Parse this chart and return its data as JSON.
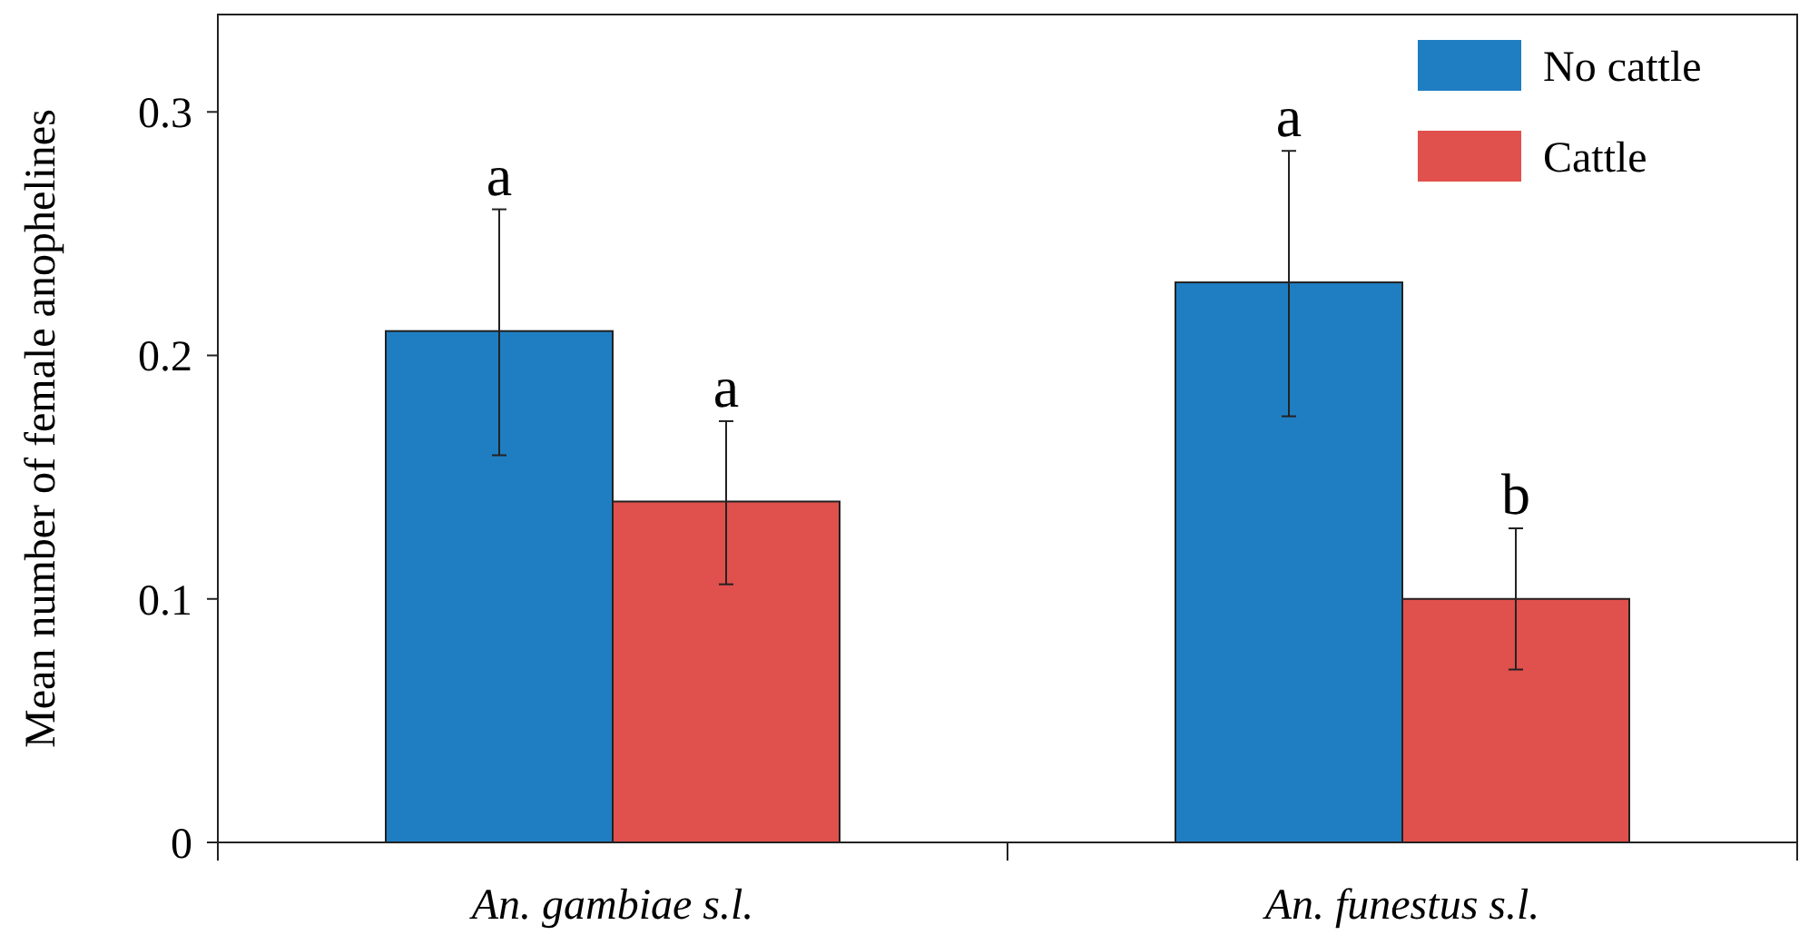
{
  "chart_data": {
    "type": "bar",
    "ylabel": "Mean number of female anophelines",
    "categories": [
      "An. gambiae s.l.",
      "An. funestus s.l."
    ],
    "series": [
      {
        "name": "No cattle",
        "color": "#1f7ec2",
        "values": [
          0.21,
          0.23
        ],
        "errors": [
          [
            0.159,
            0.26
          ],
          [
            0.175,
            0.284
          ]
        ]
      },
      {
        "name": "Cattle",
        "color": "#e0504c",
        "values": [
          0.14,
          0.1
        ],
        "errors": [
          [
            0.106,
            0.173
          ],
          [
            0.071,
            0.129
          ]
        ]
      }
    ],
    "ylim": [
      0,
      0.34
    ],
    "yticks": [
      {
        "value": 0,
        "label": "0"
      },
      0.1,
      0.2,
      0.3
    ],
    "grid": false,
    "legend": "top right",
    "annotations": [
      {
        "text": "a",
        "x": "An. gambiae s.l.",
        "y": 0.21
      },
      {
        "text": "a",
        "x": "An. gambiae s.l.",
        "y": 0.14
      },
      {
        "text": "a",
        "x": "An. funestus s.l.",
        "y": 0.23
      },
      {
        "text": "b",
        "x": "An. funestus s.l.",
        "y": 0.1
      }
    ]
  }
}
